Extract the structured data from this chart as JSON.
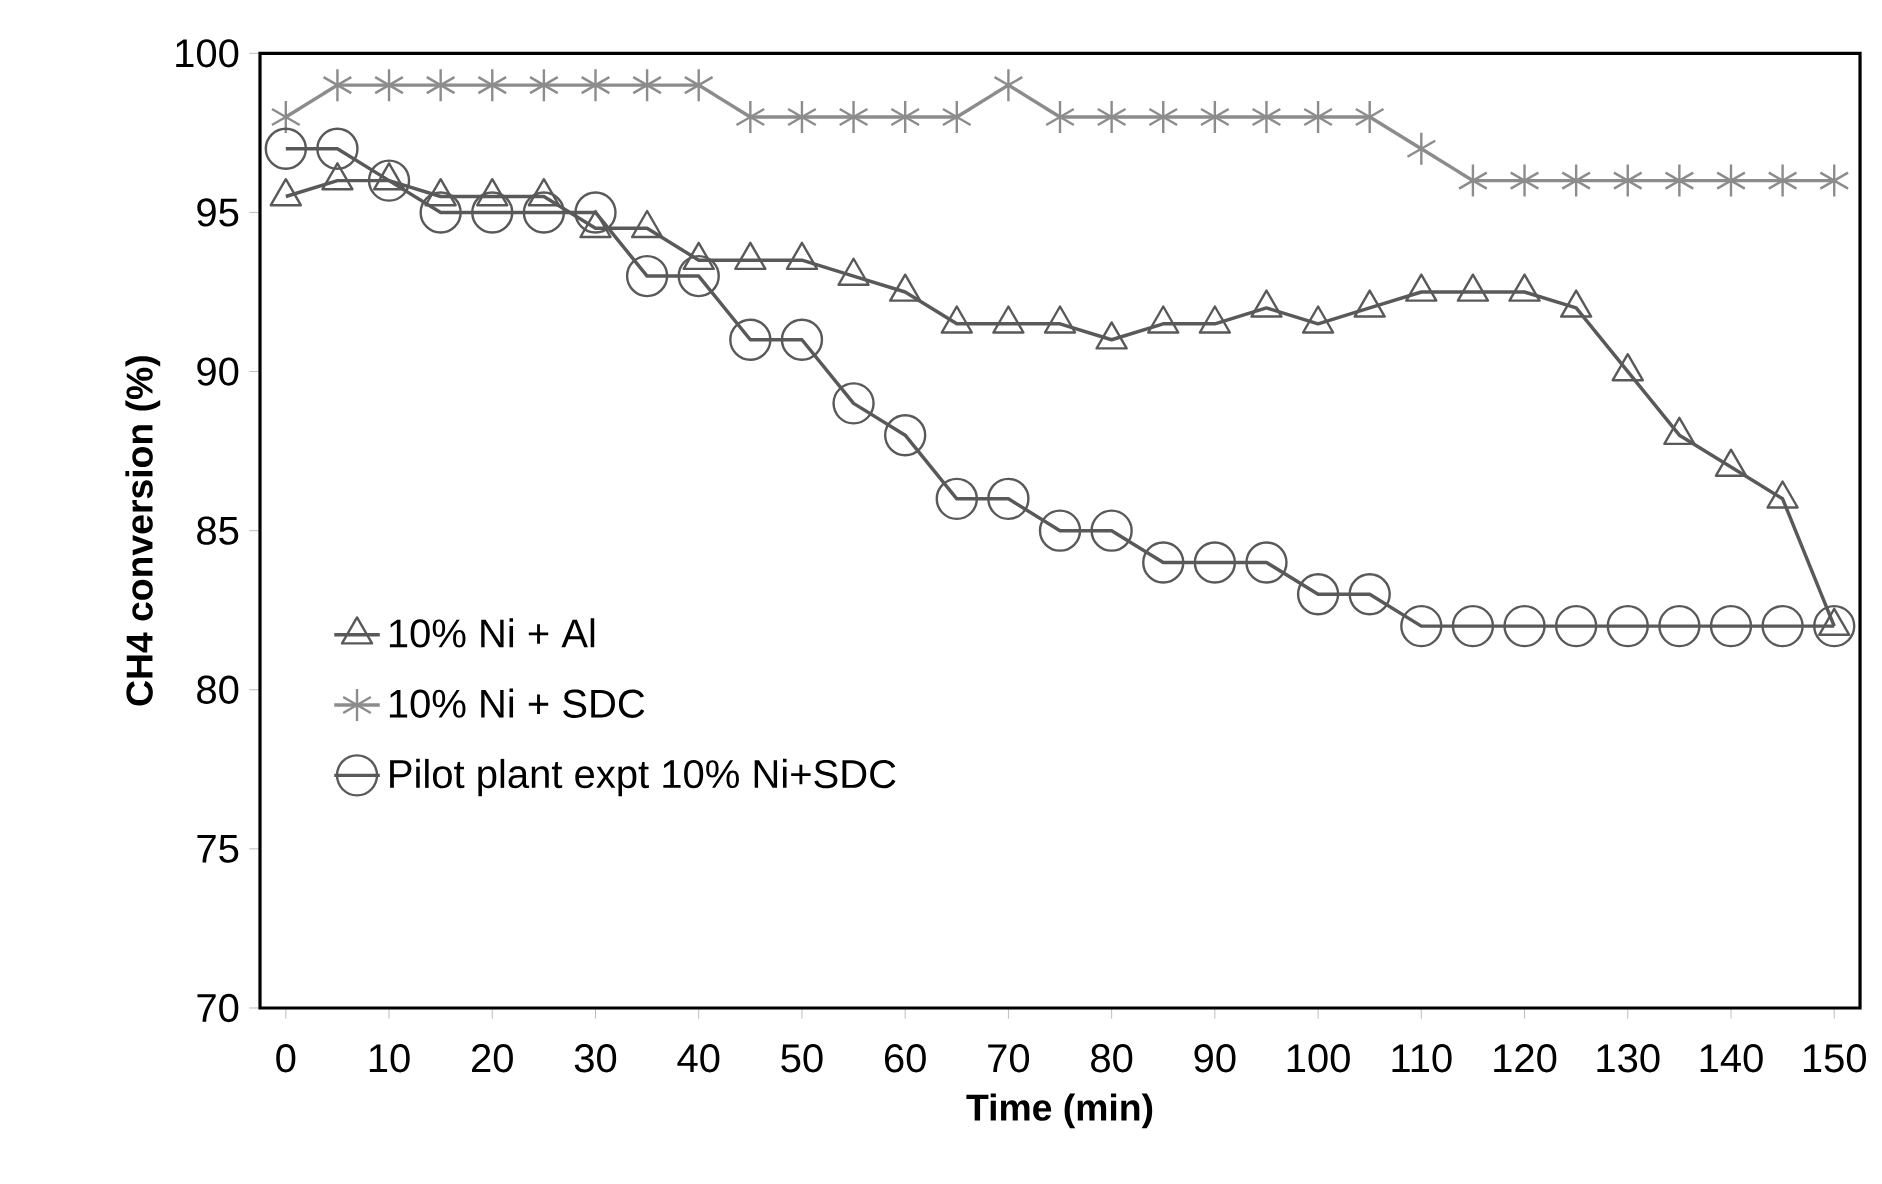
{
  "chart_data": {
    "type": "line",
    "xlabel": "Time (min)",
    "ylabel": "CH4 conversion (%)",
    "x": [
      0,
      5,
      10,
      15,
      20,
      25,
      30,
      35,
      40,
      45,
      50,
      55,
      60,
      65,
      70,
      75,
      80,
      85,
      90,
      95,
      100,
      105,
      110,
      115,
      120,
      125,
      130,
      135,
      140,
      145,
      150
    ],
    "series": [
      {
        "name": "10% Ni + Al",
        "color": "#595959",
        "marker": "triangle",
        "values": [
          95.5,
          96,
          96,
          95.5,
          95.5,
          95.5,
          94.5,
          94.5,
          93.5,
          93.5,
          93.5,
          93,
          92.5,
          91.5,
          91.5,
          91.5,
          91,
          91.5,
          91.5,
          92,
          91.5,
          92,
          92.5,
          92.5,
          92.5,
          92,
          90,
          88,
          87,
          86,
          82
        ]
      },
      {
        "name": "10% Ni + SDC",
        "color": "#8c8c8c",
        "marker": "cross",
        "values": [
          98,
          99,
          99,
          99,
          99,
          99,
          99,
          99,
          99,
          98,
          98,
          98,
          98,
          98,
          99,
          98,
          98,
          98,
          98,
          98,
          98,
          98,
          97,
          96,
          96,
          96,
          96,
          96,
          96,
          96,
          96
        ]
      },
      {
        "name": "Pilot plant expt 10% Ni+SDC",
        "color": "#595959",
        "marker": "circle",
        "values": [
          97,
          97,
          96,
          95,
          95,
          95,
          95,
          93,
          93,
          91,
          91,
          89,
          88,
          86,
          86,
          85,
          85,
          84,
          84,
          84,
          83,
          83,
          82,
          82,
          82,
          82,
          82,
          82,
          82,
          82,
          82
        ]
      }
    ],
    "xlim": [
      -2.5,
      152.5
    ],
    "ylim": [
      70,
      100
    ],
    "xticks": [
      0,
      10,
      20,
      30,
      40,
      50,
      60,
      70,
      80,
      90,
      100,
      110,
      120,
      130,
      140,
      150
    ],
    "yticks": [
      70,
      75,
      80,
      85,
      90,
      95,
      100
    ],
    "grid": false,
    "legend": "left",
    "line_style": "solid"
  }
}
